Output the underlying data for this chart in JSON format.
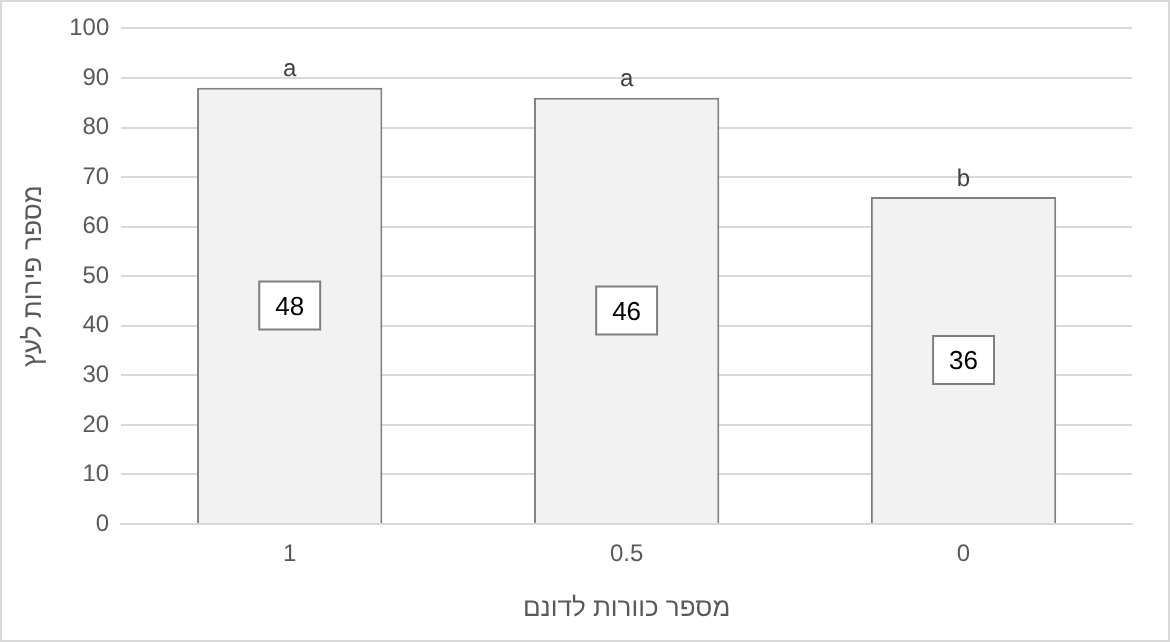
{
  "chart_data": {
    "type": "bar",
    "xlabel": "מספר כוורות לדונם",
    "ylabel": "מספר פירות לעץ",
    "categories": [
      "1",
      "0.5",
      "0"
    ],
    "values": [
      88,
      86,
      66
    ],
    "color": "#f2f2f2",
    "annotations": [
      {
        "text": "48",
        "x": "1"
      },
      {
        "text": "46",
        "x": "0.5"
      },
      {
        "text": "36",
        "x": "0"
      },
      {
        "text": "a",
        "x": "1",
        "y": 88
      },
      {
        "text": "a",
        "x": "0.5",
        "y": 86
      },
      {
        "text": "b",
        "x": "0",
        "y": 66
      }
    ],
    "ylim": [
      0,
      100
    ],
    "yticks": [
      0,
      10,
      20,
      30,
      40,
      50,
      60,
      70,
      80,
      90,
      100
    ],
    "grid": "y",
    "legend": false
  }
}
